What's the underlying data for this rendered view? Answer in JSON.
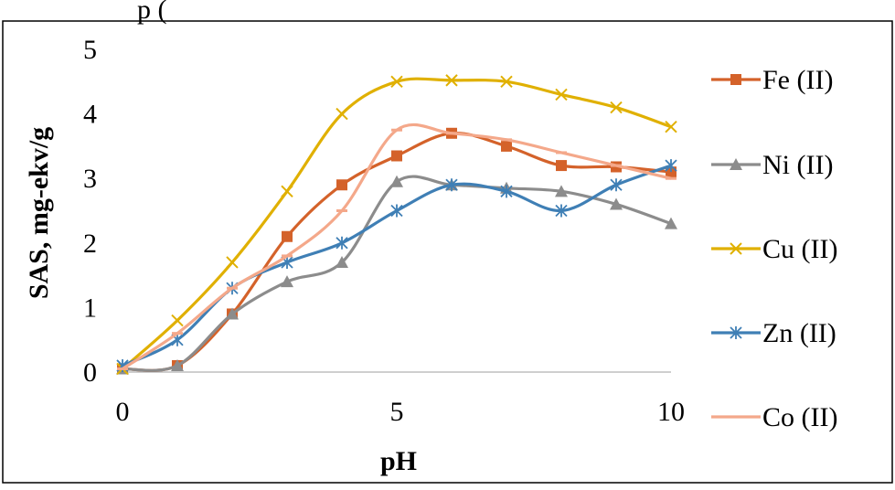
{
  "caption_fragment": "p          ( ",
  "colors": {
    "background": "#ffffff",
    "border": "#000000",
    "axis": "#bfbfbf",
    "text": "#000000"
  },
  "chart_data": {
    "type": "line",
    "xlabel": "pH",
    "ylabel": "SAS, mg-ekv/g",
    "xlim": [
      0,
      10
    ],
    "ylim": [
      0,
      5
    ],
    "x_ticks": [
      "0",
      "5",
      "10"
    ],
    "y_ticks": [
      "0",
      "1",
      "2",
      "3",
      "4",
      "5"
    ],
    "grid": false,
    "smooth": true,
    "legend_position": "right",
    "series": [
      {
        "name": "Fe (II)",
        "color": "#d4622a",
        "marker": "square",
        "x": [
          0,
          1,
          2,
          3,
          4,
          5,
          6,
          7,
          8,
          9,
          10
        ],
        "y": [
          0.05,
          0.1,
          0.9,
          2.1,
          2.9,
          3.35,
          3.7,
          3.5,
          3.2,
          3.18,
          3.1
        ]
      },
      {
        "name": "Ni (II)",
        "color": "#8c8c8c",
        "marker": "triangle",
        "x": [
          0,
          1,
          2,
          3,
          4,
          5,
          6,
          7,
          8,
          9,
          10
        ],
        "y": [
          0.05,
          0.1,
          0.9,
          1.4,
          1.7,
          2.95,
          2.9,
          2.85,
          2.8,
          2.6,
          2.3
        ]
      },
      {
        "name": "Cu (II)",
        "color": "#e0b000",
        "marker": "x",
        "x": [
          0,
          1,
          2,
          3,
          4,
          5,
          6,
          7,
          8,
          9,
          10
        ],
        "y": [
          0.05,
          0.8,
          1.7,
          2.8,
          4.0,
          4.5,
          4.52,
          4.5,
          4.3,
          4.1,
          3.8
        ]
      },
      {
        "name": "Zn (II)",
        "color": "#3f7fb5",
        "marker": "asterisk",
        "x": [
          0,
          1,
          2,
          3,
          4,
          5,
          6,
          7,
          8,
          9,
          10
        ],
        "y": [
          0.1,
          0.5,
          1.3,
          1.7,
          2.0,
          2.5,
          2.9,
          2.8,
          2.5,
          2.9,
          3.2
        ]
      },
      {
        "name": "Co (II)",
        "color": "#f4a88a",
        "marker": "dash",
        "x": [
          0,
          1,
          2,
          3,
          4,
          5,
          6,
          7,
          8,
          9,
          10
        ],
        "y": [
          0.05,
          0.6,
          1.3,
          1.8,
          2.5,
          3.75,
          3.7,
          3.6,
          3.4,
          3.2,
          3.0
        ]
      }
    ]
  }
}
